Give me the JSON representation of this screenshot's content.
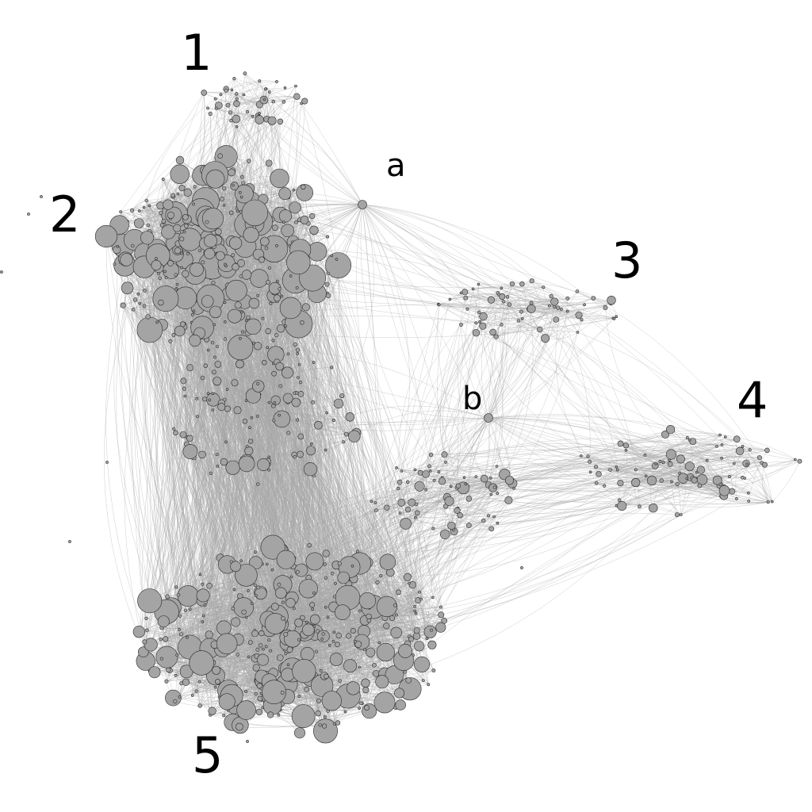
{
  "figure": {
    "background": "#ffffff",
    "node_fill": "#a4a4a4",
    "node_stroke": "#2b2b2b",
    "edge_color": "#a6a6a6",
    "cluster_labels": [
      {
        "id": "c1",
        "text": "1"
      },
      {
        "id": "c2",
        "text": "2"
      },
      {
        "id": "c3",
        "text": "3"
      },
      {
        "id": "c4",
        "text": "4"
      },
      {
        "id": "c5",
        "text": "5"
      }
    ],
    "hub_labels": [
      {
        "id": "a",
        "text": "a"
      },
      {
        "id": "b",
        "text": "b"
      }
    ]
  }
}
